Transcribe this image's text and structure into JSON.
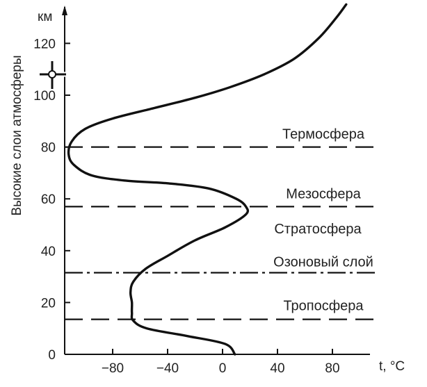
{
  "chart_data": {
    "type": "line",
    "title": "",
    "xlabel": "t, °C",
    "ylabel": "Высокие слои атмосферы",
    "y_unit": "км",
    "xlim": [
      -120,
      100
    ],
    "ylim": [
      0,
      135
    ],
    "x_ticks": [
      -80,
      -40,
      0,
      40,
      80
    ],
    "x_tick_labels": [
      "−80",
      "−40",
      "0",
      "40",
      "80"
    ],
    "y_ticks": [
      0,
      20,
      40,
      60,
      80,
      100,
      120
    ],
    "y_tick_labels": [
      "0",
      "20",
      "40",
      "60",
      "80",
      "100",
      "120"
    ],
    "grid": false,
    "series": [
      {
        "points": [
          [
            9,
            0
          ],
          [
            2,
            4
          ],
          [
            -25,
            7
          ],
          [
            -55,
            10
          ],
          [
            -65,
            13
          ],
          [
            -66,
            16
          ],
          [
            -66,
            20
          ],
          [
            -67,
            24
          ],
          [
            -65,
            28
          ],
          [
            -56,
            33
          ],
          [
            -40,
            38
          ],
          [
            -20,
            44
          ],
          [
            2,
            49
          ],
          [
            17,
            54
          ],
          [
            17,
            57
          ],
          [
            10,
            60
          ],
          [
            -10,
            64
          ],
          [
            -40,
            66
          ],
          [
            -70,
            67
          ],
          [
            -95,
            69
          ],
          [
            -108,
            73
          ],
          [
            -112,
            77
          ],
          [
            -110,
            82
          ],
          [
            -100,
            87
          ],
          [
            -80,
            91
          ],
          [
            -50,
            95
          ],
          [
            -20,
            99
          ],
          [
            5,
            103
          ],
          [
            30,
            108
          ],
          [
            52,
            114
          ],
          [
            70,
            122
          ],
          [
            83,
            130
          ],
          [
            90,
            135
          ]
        ]
      }
    ],
    "boundaries": [
      {
        "label": "Термосфера",
        "y": 80,
        "style": "dashed"
      },
      {
        "label": "Мезосфера",
        "y": 57,
        "style": "dashed"
      },
      {
        "label": "Стратосфера",
        "y": null,
        "style": "none"
      },
      {
        "label": "Озоновый слой",
        "y": 31.5,
        "style": "dashdot"
      },
      {
        "label": "Тропосфера",
        "y": 13.5,
        "style": "dashed"
      }
    ]
  }
}
